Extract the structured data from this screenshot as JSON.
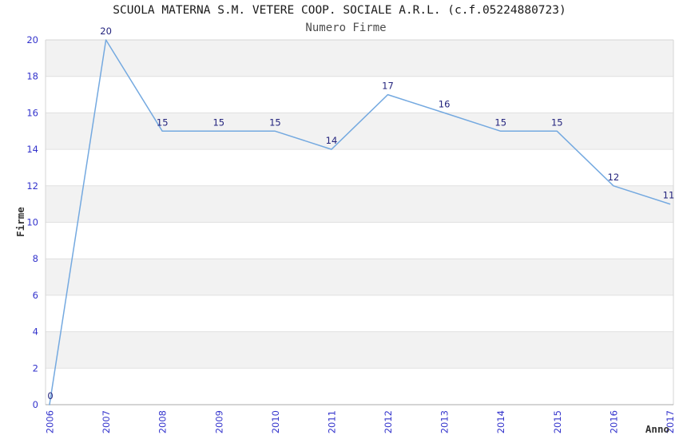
{
  "header": {
    "title": "SCUOLA MATERNA S.M. VETERE COOP. SOCIALE A.R.L. (c.f.05224880723)",
    "subtitle": "Numero Firme"
  },
  "colors": {
    "line": "#74a9e0",
    "data_label": "#23237d",
    "tick_label": "#3333cc",
    "axis_title": "#333333",
    "title_text": "#1a1a1a",
    "subtitle_text": "#4d4d4d",
    "band_fill": "#f2f2f2",
    "gridline": "#e0e0e0",
    "plot_border": "#d6d6d6",
    "axis_line": "#a8a8a8",
    "background": "#ffffff"
  },
  "chart_data": {
    "type": "line",
    "title": "SCUOLA MATERNA S.M. VETERE COOP. SOCIALE A.R.L. (c.f.05224880723)",
    "subtitle": "Numero Firme",
    "xlabel": "Anno",
    "ylabel": "Firme",
    "categories": [
      "2006",
      "2007",
      "2008",
      "2009",
      "2010",
      "2011",
      "2012",
      "2013",
      "2014",
      "2015",
      "2016",
      "2017"
    ],
    "values": [
      0,
      20,
      15,
      15,
      15,
      14,
      17,
      16,
      15,
      15,
      12,
      11
    ],
    "ylim": [
      0,
      20
    ],
    "ytick_step": 2,
    "yticks": [
      0,
      2,
      4,
      6,
      8,
      10,
      12,
      14,
      16,
      18,
      20
    ],
    "grid": "horizontal gridlines with alternating shaded bands every 2 units",
    "legend_position": "none",
    "point_labels_visible": true,
    "markers": "none",
    "x_tick_rotation_deg": -90
  }
}
